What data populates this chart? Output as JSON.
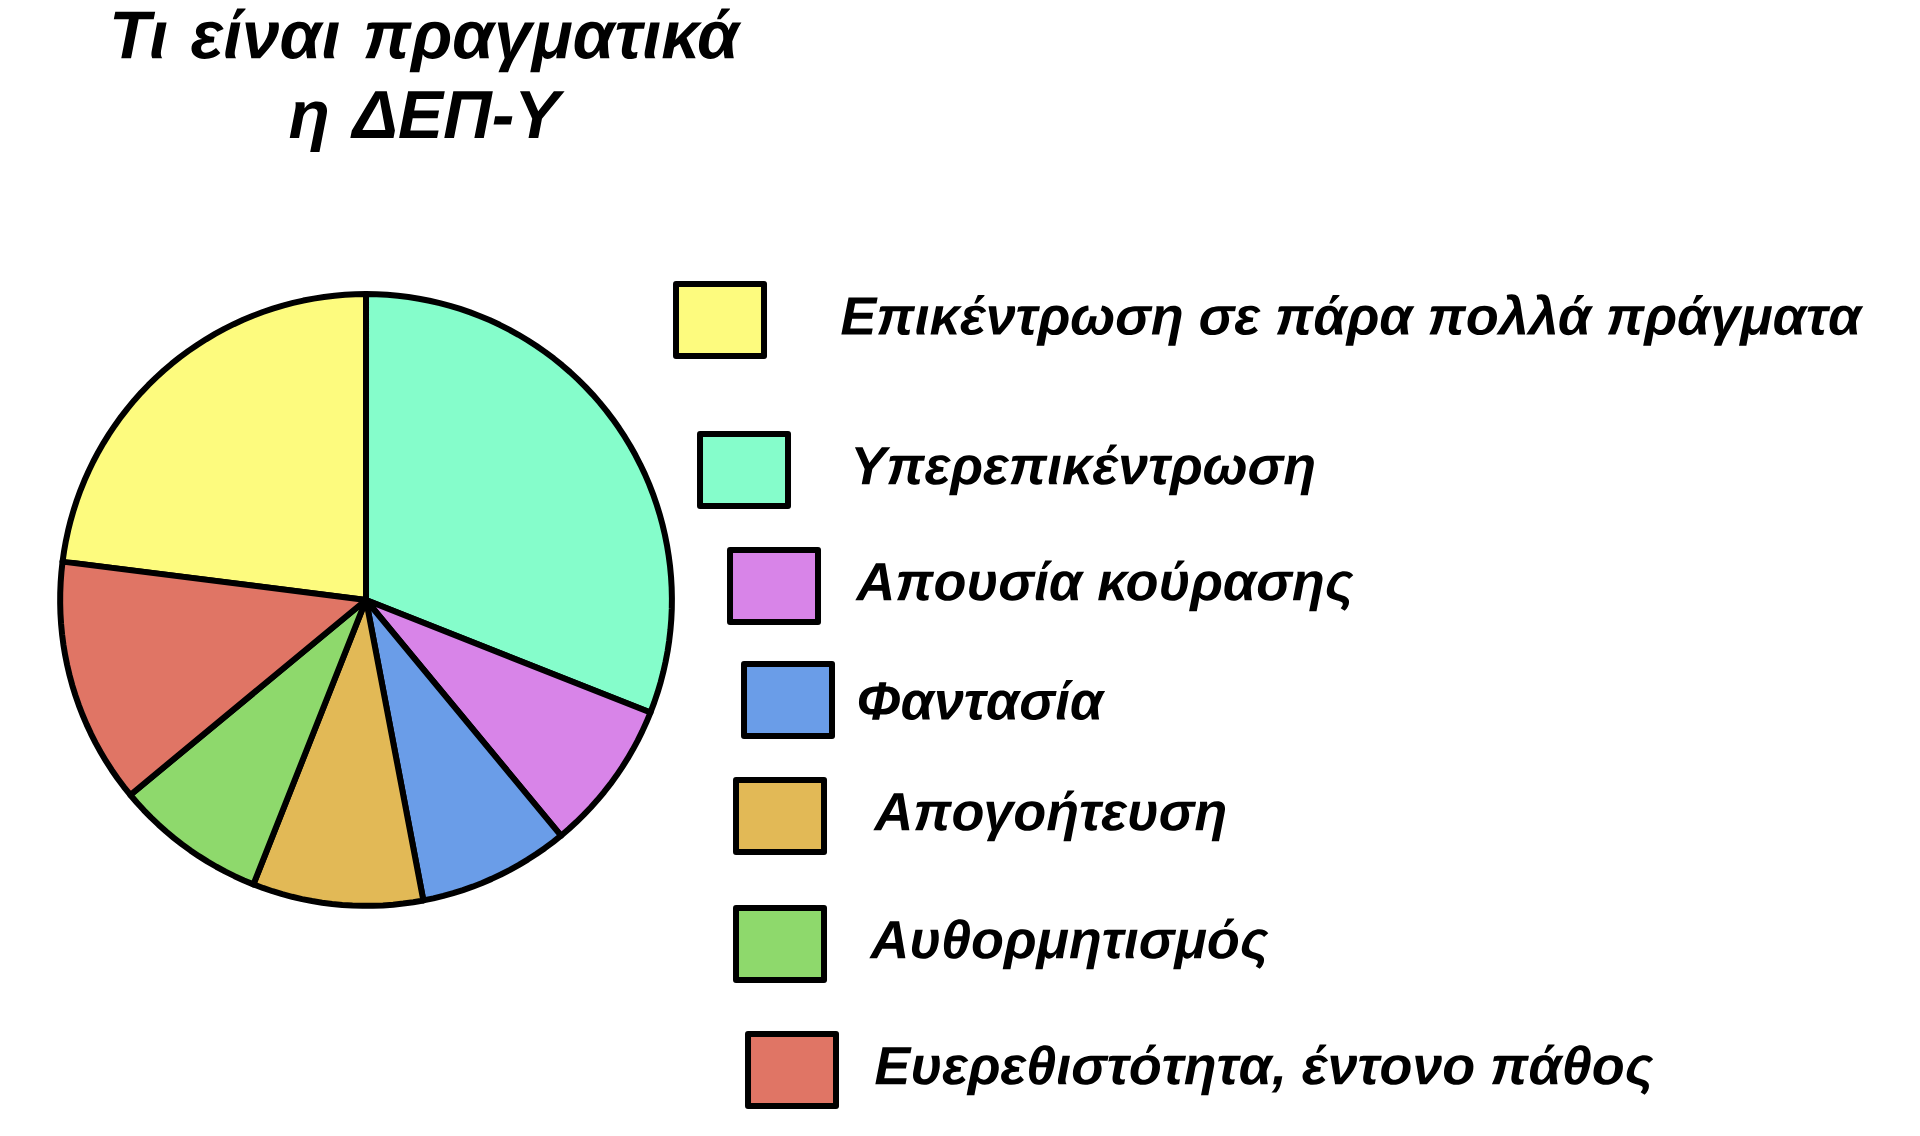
{
  "chart_data": {
    "type": "pie",
    "title": "Τι είναι πραγματικά η ΔΕΠ-Υ",
    "categories": [
      "Επικέντρωση σε πάρα πολλά πράγματα",
      "Υπερεπικέντρωση",
      "Απουσία κούρασης",
      "Φαντασία",
      "Απογοήτευση",
      "Αυθορμητισμός",
      "Ευερεθιστότητα, έντονο πάθος"
    ],
    "values": [
      23,
      31,
      8,
      8,
      9,
      8,
      13
    ],
    "colors": [
      "#fdfb7e",
      "#85fdcb",
      "#d884e8",
      "#6a9de8",
      "#e2b956",
      "#8ed96c",
      "#e07565"
    ],
    "legend": "right"
  }
}
